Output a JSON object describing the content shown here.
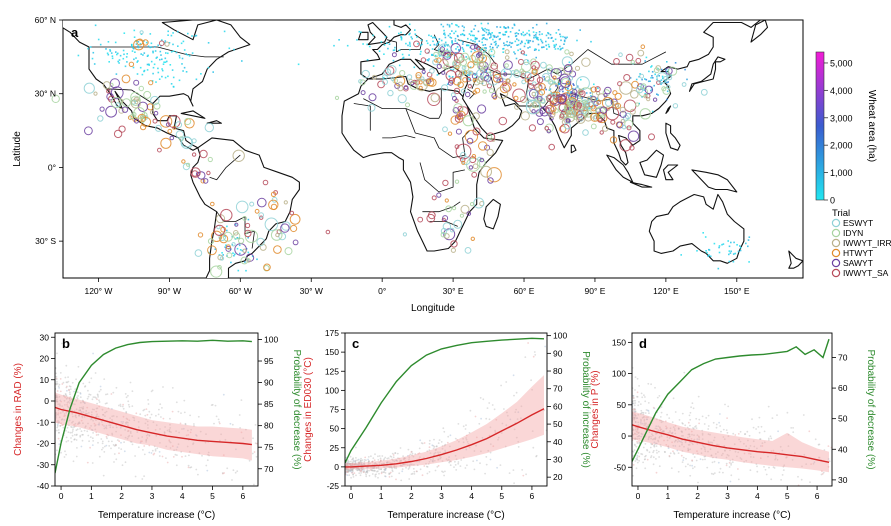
{
  "map_panel": {
    "letter": "a",
    "xlabel": "Longitude",
    "ylabel": "Latitude",
    "lon_ticks": [
      "120° W",
      "90° W",
      "60° W",
      "30° W",
      "0°",
      "30° E",
      "60° E",
      "90° E",
      "120° E",
      "150° E"
    ],
    "lon_values": [
      -120,
      -90,
      -60,
      -30,
      0,
      30,
      60,
      90,
      120,
      150
    ],
    "lat_ticks": [
      "60° N",
      "30° N",
      "0°",
      "30° S"
    ],
    "lat_values": [
      60,
      30,
      0,
      -30
    ],
    "lon_range": [
      -135,
      178
    ],
    "lat_range": [
      -45,
      60
    ],
    "colorbar": {
      "label": "Wheat area (ha)",
      "ticks": [
        "0",
        "1,000",
        "2,000",
        "3,000",
        "4,000",
        "5,000"
      ],
      "tick_values": [
        0,
        1000,
        2000,
        3000,
        4000,
        5000
      ],
      "max": 5400,
      "color_low": "#21e6f0",
      "color_mid": "#3a5ccf",
      "color_high": "#f21bd6"
    },
    "legend": {
      "title": "Trial",
      "items": [
        {
          "label": "ESWYT",
          "color": "#8fd1d6"
        },
        {
          "label": "IDYN",
          "color": "#a7d3a0"
        },
        {
          "label": "IWWYT_IRR",
          "color": "#b8b08a"
        },
        {
          "label": "HTWYT",
          "color": "#e08a2a"
        },
        {
          "label": "SAWYT",
          "color": "#6b3fa0"
        },
        {
          "label": "IWWYT_SA",
          "color": "#b64a5a"
        }
      ]
    }
  },
  "chart_data": [
    {
      "type": "line",
      "panel": "b",
      "xlabel": "Temperature increase (°C)",
      "ylabel_left": "Changes in RAD (%)",
      "ylabel_right": "Probability of decrease (%)",
      "xlim": [
        -0.2,
        6.5
      ],
      "ylim_left": [
        -40,
        32
      ],
      "ylim_right": [
        66,
        101.5
      ],
      "xticks": [
        0,
        1,
        2,
        3,
        4,
        5,
        6
      ],
      "yticks_left": [
        -40,
        -30,
        -20,
        -10,
        0,
        10,
        20,
        30
      ],
      "yticks_right": [
        70,
        75,
        80,
        85,
        90,
        95,
        100
      ],
      "series": [
        {
          "axis": "left",
          "color": "#d62728",
          "x": [
            -0.2,
            0,
            0.5,
            1,
            1.5,
            2,
            2.5,
            3,
            3.5,
            4,
            4.5,
            5,
            5.5,
            6,
            6.3
          ],
          "y": [
            -3,
            -4,
            -5.5,
            -7.5,
            -9.5,
            -11.5,
            -13.5,
            -15,
            -16.5,
            -17.5,
            -18.5,
            -19,
            -19.5,
            -20,
            -20.5
          ],
          "band_upper": [
            4,
            3,
            1,
            -1,
            -3,
            -5,
            -7,
            -9,
            -10,
            -11,
            -12,
            -12,
            -12.5,
            -13,
            -13.5
          ],
          "band_lower": [
            -10,
            -11,
            -12,
            -14,
            -16,
            -18,
            -20,
            -21,
            -23,
            -24,
            -25,
            -26,
            -26.5,
            -27,
            -28
          ]
        },
        {
          "axis": "right",
          "color": "#2e8b2e",
          "x": [
            -0.2,
            0,
            0.3,
            0.6,
            1,
            1.4,
            1.8,
            2.2,
            2.6,
            3,
            3.5,
            4,
            4.5,
            5,
            5.5,
            6,
            6.3
          ],
          "y": [
            69,
            76,
            84,
            90,
            94,
            96.5,
            98,
            98.8,
            99.3,
            99.5,
            99.6,
            99.7,
            99.6,
            99.8,
            99.6,
            99.7,
            99.5
          ]
        }
      ]
    },
    {
      "type": "line",
      "panel": "c",
      "xlabel": "Temperature increase (°C)",
      "ylabel_left": "Changes in ED030 (°C)",
      "ylabel_right": "Probability of increase (%)",
      "xlim": [
        -0.2,
        6.5
      ],
      "ylim_left": [
        -25,
        175
      ],
      "ylim_right": [
        15,
        101.5
      ],
      "xticks": [
        0,
        1,
        2,
        3,
        4,
        5,
        6
      ],
      "yticks_left": [
        -25,
        0,
        25,
        50,
        75,
        100,
        125,
        150,
        175
      ],
      "yticks_right": [
        20,
        30,
        40,
        50,
        60,
        70,
        80,
        90,
        100
      ],
      "series": [
        {
          "axis": "left",
          "color": "#d62728",
          "x": [
            -0.2,
            0,
            0.5,
            1,
            1.5,
            2,
            2.5,
            3,
            3.5,
            4,
            4.5,
            5,
            5.5,
            6,
            6.4
          ],
          "y": [
            0,
            0,
            1,
            2,
            4,
            7,
            11,
            16,
            22,
            29,
            37,
            47,
            57,
            68,
            76
          ],
          "band_upper": [
            5,
            5,
            6,
            8,
            11,
            15,
            20,
            27,
            35,
            45,
            56,
            70,
            85,
            105,
            120
          ],
          "band_lower": [
            -3,
            -3,
            -3,
            -2,
            -1,
            1,
            3,
            6,
            9,
            13,
            18,
            24,
            30,
            36,
            42
          ]
        },
        {
          "axis": "right",
          "color": "#2e8b2e",
          "x": [
            -0.2,
            0,
            0.5,
            1,
            1.5,
            2,
            2.5,
            3,
            3.5,
            4,
            4.5,
            5,
            5.5,
            6,
            6.4
          ],
          "y": [
            28,
            35,
            48,
            62,
            74,
            83,
            89,
            92.5,
            94.5,
            96,
            96.8,
            97.5,
            98,
            98.5,
            98.2
          ]
        }
      ]
    },
    {
      "type": "line",
      "panel": "d",
      "xlabel": "Temperature increase (°C)",
      "ylabel_left": "Changes in P (%)",
      "ylabel_right": "Probability of decrease (%)",
      "xlim": [
        -0.2,
        6.5
      ],
      "ylim_left": [
        -80,
        165
      ],
      "ylim_right": [
        28,
        78
      ],
      "xticks": [
        0,
        1,
        2,
        3,
        4,
        5,
        6
      ],
      "yticks_left": [
        -50,
        0,
        50,
        100,
        150
      ],
      "yticks_right": [
        30,
        40,
        50,
        60,
        70
      ],
      "series": [
        {
          "axis": "left",
          "color": "#d62728",
          "x": [
            -0.2,
            0,
            0.5,
            1,
            1.5,
            2,
            2.5,
            3,
            3.5,
            4,
            4.5,
            5,
            5.5,
            6,
            6.4
          ],
          "y": [
            18,
            15,
            8,
            2,
            -5,
            -10,
            -15,
            -19,
            -22,
            -25,
            -27,
            -30,
            -33,
            -38,
            -42
          ],
          "band_upper": [
            40,
            37,
            30,
            22,
            15,
            10,
            6,
            2,
            -2,
            -5,
            -8,
            5,
            -10,
            -20,
            -25
          ],
          "band_lower": [
            -5,
            -7,
            -12,
            -18,
            -25,
            -30,
            -35,
            -38,
            -42,
            -45,
            -48,
            -50,
            -52,
            -55,
            -58
          ]
        },
        {
          "axis": "right",
          "color": "#2e8b2e",
          "x": [
            -0.2,
            0,
            0.3,
            0.6,
            1,
            1.4,
            1.8,
            2.2,
            2.6,
            3,
            3.4,
            3.8,
            4.2,
            4.6,
            5,
            5.3,
            5.6,
            5.9,
            6.2,
            6.4
          ],
          "y": [
            36,
            40,
            46,
            52,
            58,
            62,
            66,
            68,
            69.5,
            70,
            70.5,
            70.8,
            71,
            71.5,
            72,
            73.5,
            71,
            72.5,
            70,
            76
          ]
        }
      ]
    }
  ]
}
